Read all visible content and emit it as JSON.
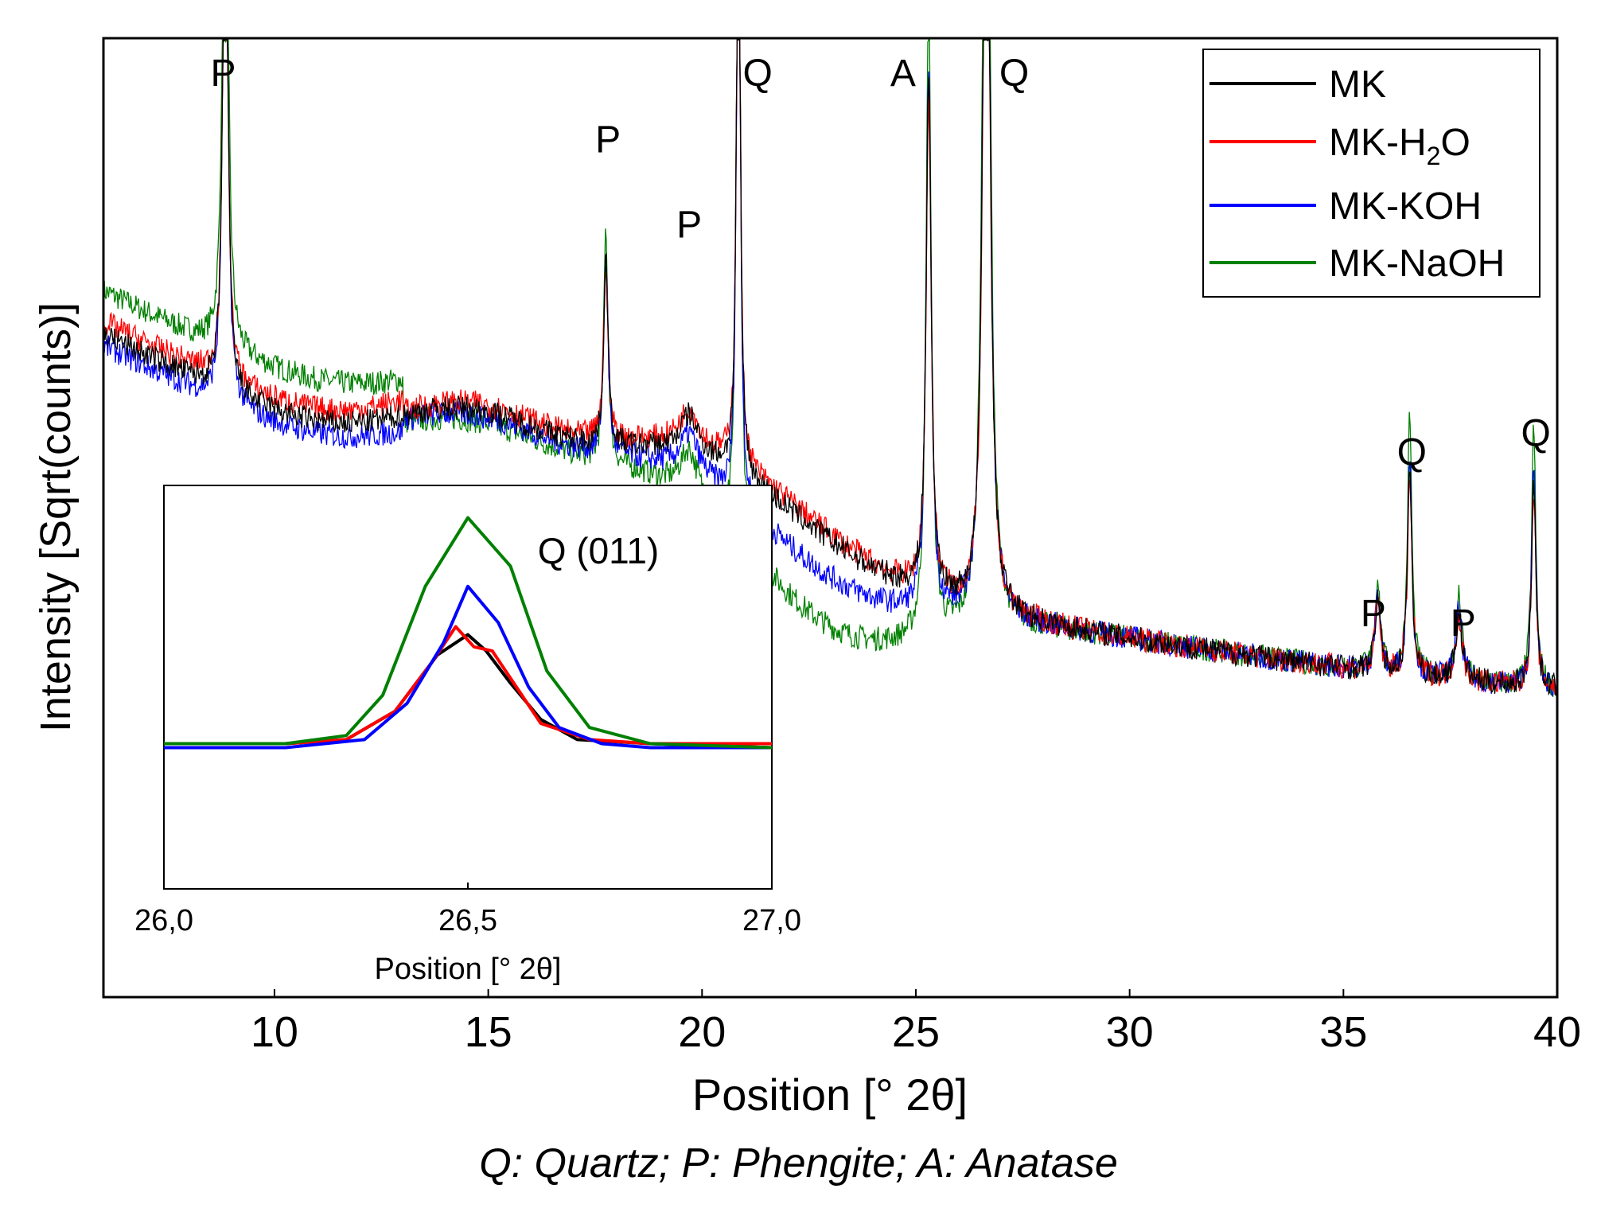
{
  "chart_data": {
    "main": {
      "type": "line",
      "title": "",
      "xlabel": "Position [° 2θ]",
      "ylabel": "Intensity [Sqrt(counts)]",
      "xlim": [
        6,
        40
      ],
      "ylim": [
        0,
        100
      ],
      "x_ticks": [
        10,
        15,
        20,
        25,
        30,
        35,
        40
      ],
      "legend_position": "top-right",
      "series": [
        {
          "name": "MK",
          "color": "#000000"
        },
        {
          "name": "MK-H2O",
          "label_base": "MK-H",
          "label_sub": "2",
          "label_tail": "O",
          "color": "#ff0000"
        },
        {
          "name": "MK-KOH",
          "color": "#0000ff"
        },
        {
          "name": "MK-NaOH",
          "color": "#008000"
        }
      ],
      "peak_labels": [
        {
          "text": "P",
          "x": 8.8,
          "y": 100
        },
        {
          "text": "P",
          "x": 17.8,
          "y": 93
        },
        {
          "text": "P",
          "x": 19.7,
          "y": 84
        },
        {
          "text": "Q",
          "x": 21.3,
          "y": 100
        },
        {
          "text": "A",
          "x": 24.7,
          "y": 100
        },
        {
          "text": "Q",
          "x": 27.3,
          "y": 100
        },
        {
          "text": "P",
          "x": 35.7,
          "y": 43
        },
        {
          "text": "Q",
          "x": 36.6,
          "y": 60
        },
        {
          "text": "P",
          "x": 37.8,
          "y": 42
        },
        {
          "text": "Q",
          "x": 39.5,
          "y": 62
        }
      ]
    },
    "inset": {
      "type": "line",
      "title": "Q (011)",
      "xlabel": "Position [° 2θ]",
      "xlim": [
        26.0,
        27.0
      ],
      "x_ticks": [
        "26,0",
        "26,5",
        "27,0"
      ],
      "ylim": [
        0,
        100
      ],
      "series": [
        {
          "name": "MK",
          "color": "#000000",
          "x": [
            26.0,
            26.2,
            26.3,
            26.38,
            26.45,
            26.5,
            26.53,
            26.57,
            26.62,
            26.68,
            26.8,
            27.0
          ],
          "y": [
            36,
            36,
            37,
            44,
            58,
            63,
            59,
            51,
            42,
            37,
            36,
            35
          ]
        },
        {
          "name": "MK-H2O",
          "color": "#ff0000",
          "x": [
            26.0,
            26.2,
            26.3,
            26.38,
            26.44,
            26.48,
            26.51,
            26.54,
            26.58,
            26.62,
            26.7,
            26.8,
            27.0
          ],
          "y": [
            36,
            36,
            37,
            44,
            56,
            65,
            60,
            59,
            50,
            41,
            37,
            36,
            36
          ]
        },
        {
          "name": "MK-KOH",
          "color": "#0000ff",
          "x": [
            26.0,
            26.2,
            26.33,
            26.4,
            26.46,
            26.5,
            26.55,
            26.6,
            26.65,
            26.72,
            26.8,
            27.0
          ],
          "y": [
            35,
            35,
            37,
            46,
            61,
            75,
            66,
            50,
            40,
            36,
            35,
            35
          ]
        },
        {
          "name": "MK-NaOH",
          "color": "#008000",
          "x": [
            26.0,
            26.2,
            26.3,
            26.36,
            26.43,
            26.5,
            26.57,
            26.63,
            26.7,
            26.8,
            27.0
          ],
          "y": [
            36,
            36,
            38,
            48,
            75,
            92,
            80,
            54,
            40,
            36,
            35
          ]
        }
      ]
    }
  },
  "caption": "Q: Quartz; P: Phengite; A: Anatase"
}
